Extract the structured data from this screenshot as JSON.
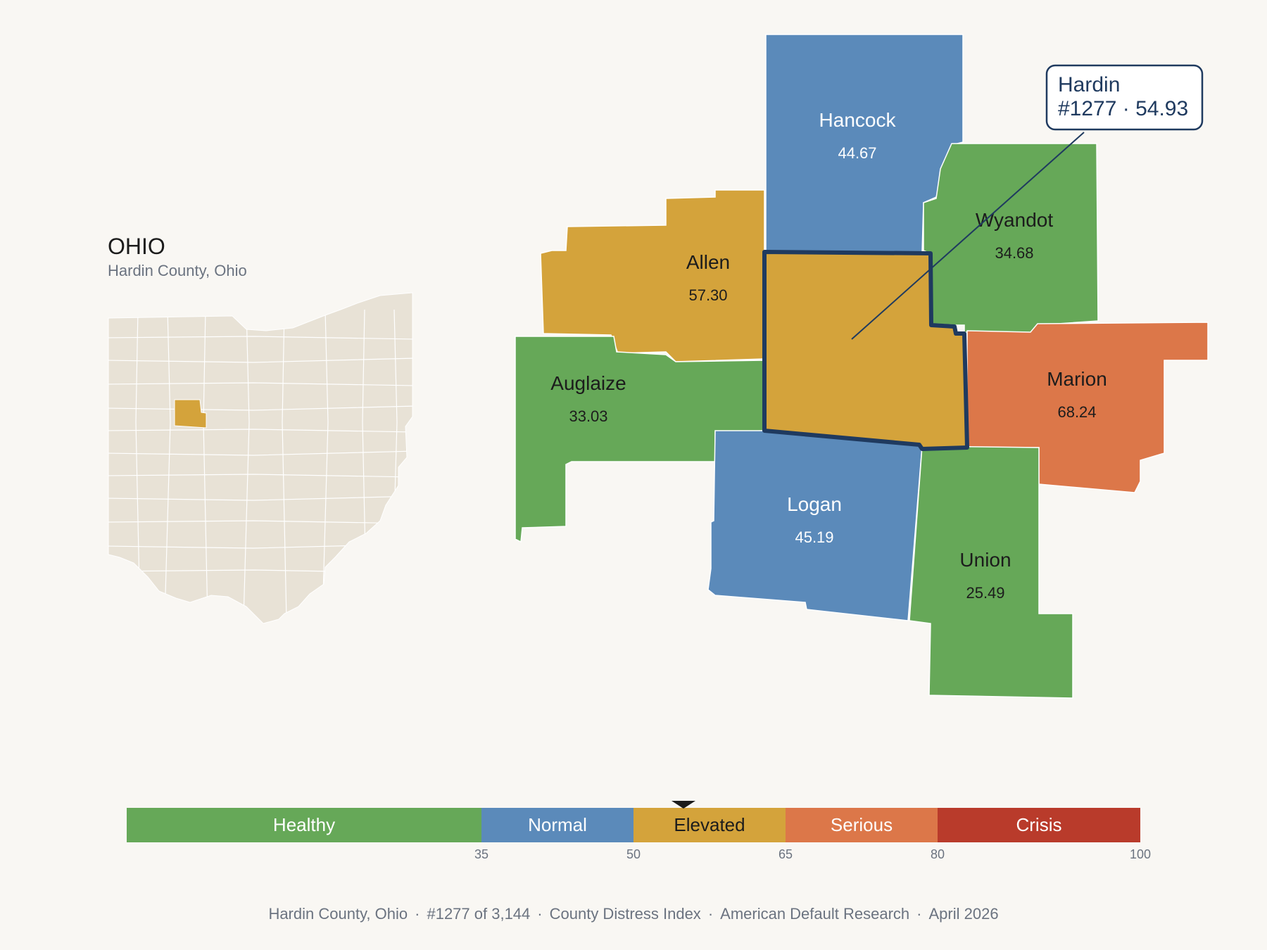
{
  "state": {
    "name": "OHIO",
    "subtitle": "Hardin County, Ohio"
  },
  "colors": {
    "healthy": "#66a858",
    "normal": "#5b8aba",
    "elevated": "#d4a33b",
    "serious": "#dc7749",
    "crisis": "#b93b2b",
    "inset_fill": "#e8e2d6",
    "outline": "#1f3a5f"
  },
  "counties": [
    {
      "name": "Hancock",
      "value": "44.67",
      "band": "normal"
    },
    {
      "name": "Wyandot",
      "value": "34.68",
      "band": "healthy"
    },
    {
      "name": "Allen",
      "value": "57.30",
      "band": "elevated"
    },
    {
      "name": "Auglaize",
      "value": "33.03",
      "band": "healthy"
    },
    {
      "name": "Marion",
      "value": "68.24",
      "band": "serious"
    },
    {
      "name": "Logan",
      "value": "45.19",
      "band": "normal"
    },
    {
      "name": "Union",
      "value": "25.49",
      "band": "healthy"
    },
    {
      "name": "Hardin",
      "value": "54.93",
      "band": "elevated"
    }
  ],
  "callout": {
    "line1": "Hardin",
    "line2": "#1277 · 54.93"
  },
  "scale": {
    "min": 0,
    "max": 100,
    "marker_value": 54.93,
    "bands": [
      {
        "label": "Healthy",
        "from": 0,
        "to": 35,
        "color": "#66a858"
      },
      {
        "label": "Normal",
        "from": 35,
        "to": 50,
        "color": "#5b8aba"
      },
      {
        "label": "Elevated",
        "from": 50,
        "to": 65,
        "color": "#d4a33b"
      },
      {
        "label": "Serious",
        "from": 65,
        "to": 80,
        "color": "#dc7749"
      },
      {
        "label": "Crisis",
        "from": 80,
        "to": 100,
        "color": "#b93b2b"
      }
    ],
    "ticks": [
      "35",
      "50",
      "65",
      "80",
      "100"
    ]
  },
  "footer": {
    "county": "Hardin County, Ohio",
    "rank": "#1277 of 3,144",
    "index": "County Distress Index",
    "org": "American Default Research",
    "date": "April 2026",
    "sep": "·"
  }
}
